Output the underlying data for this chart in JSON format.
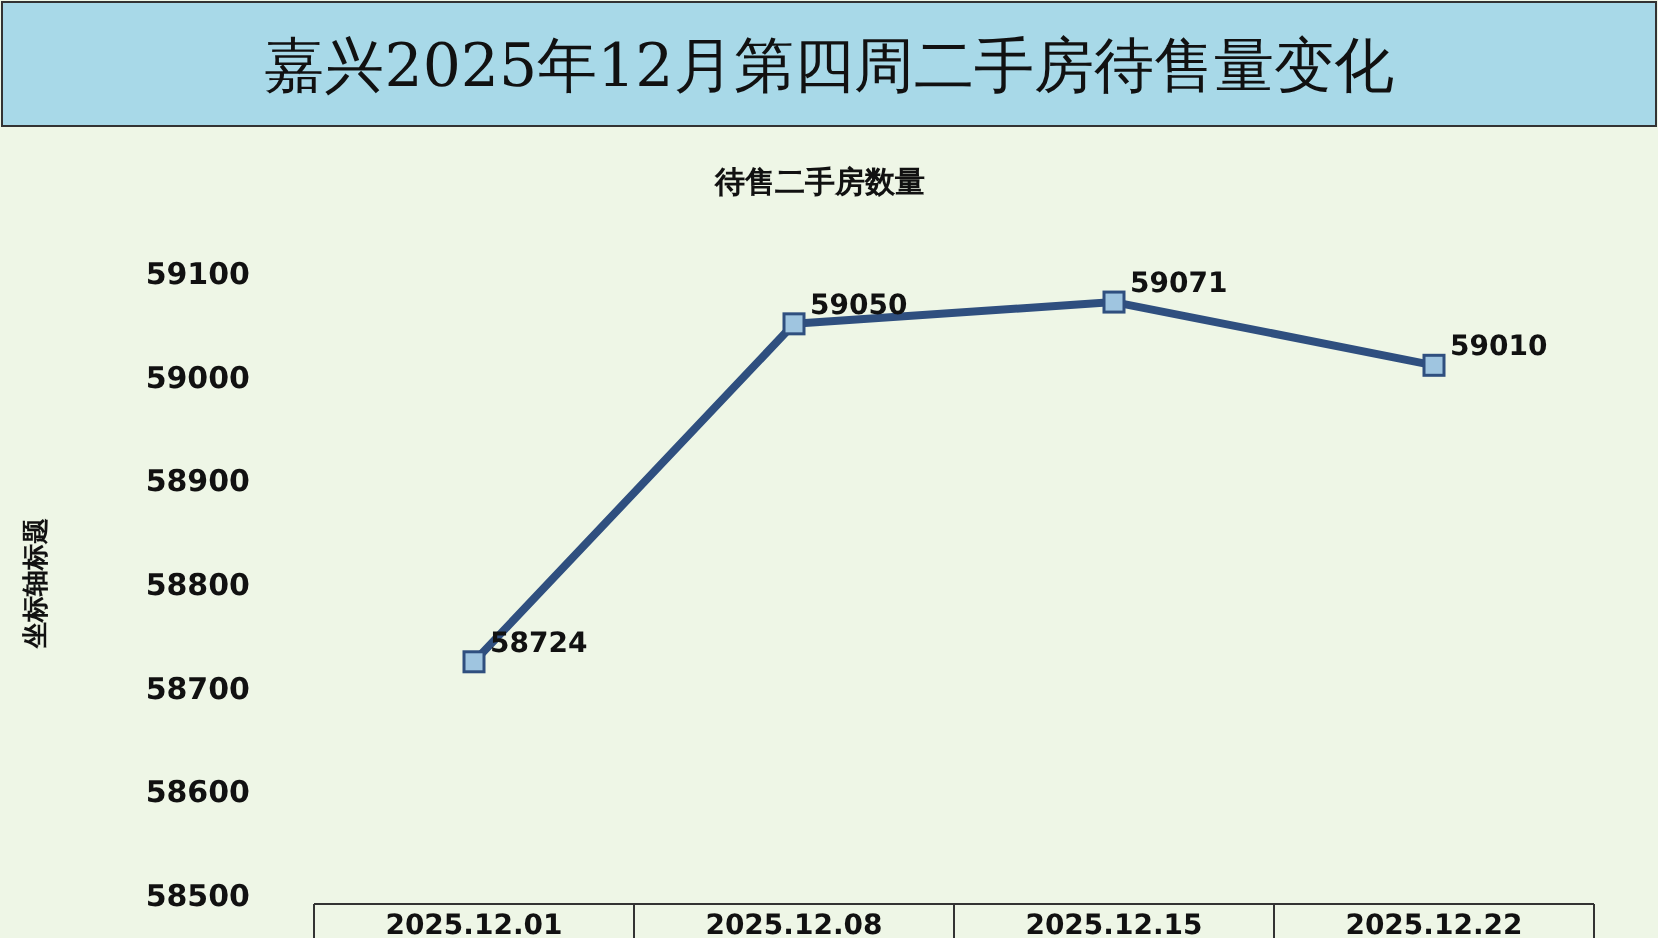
{
  "chart_data": {
    "type": "line",
    "title": "嘉兴2025年12月第四周二手房待售量变化",
    "subtitle": "待售二手房数量",
    "ylabel": "坐标轴标题",
    "categories": [
      "2025.12.01",
      "2025.12.08",
      "2025.12.15",
      "2025.12.22"
    ],
    "series": [
      {
        "color": "#2f4f7f",
        "values": [
          58724,
          59050,
          59071,
          59010
        ]
      }
    ],
    "ylim": [
      58500,
      59100
    ],
    "yticks": [
      58500,
      58600,
      58700,
      58800,
      58900,
      59000,
      59100
    ],
    "grid": false,
    "marker": "square",
    "line_style": "solid",
    "data_labels": true
  }
}
